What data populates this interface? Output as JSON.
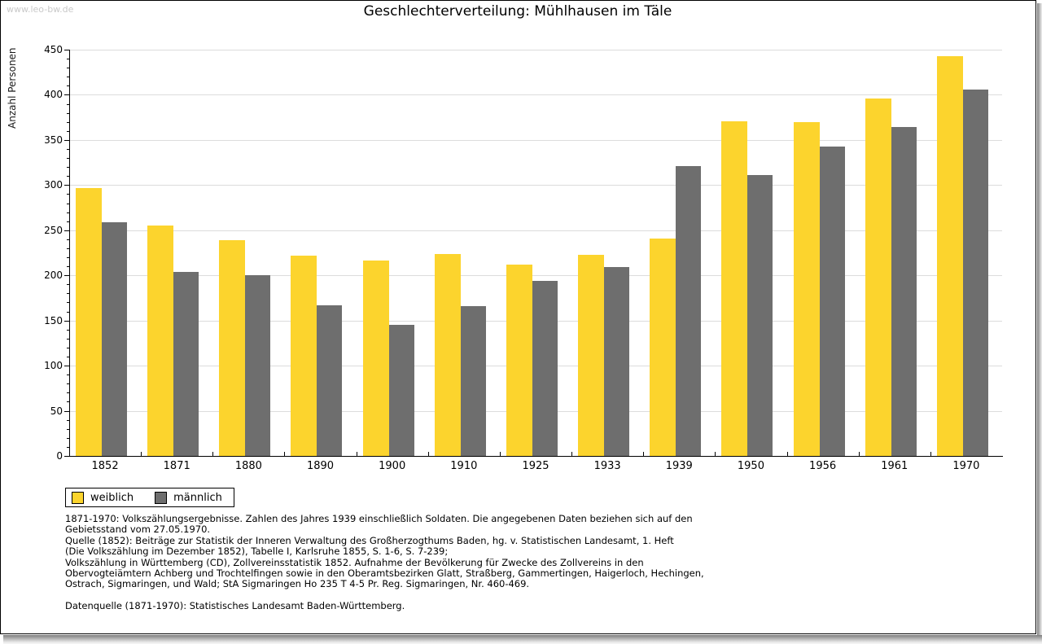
{
  "page": {
    "watermark": "www.leo-bw.de"
  },
  "chart_data": {
    "type": "bar",
    "title": "Geschlechterverteilung: Mühlhausen im Täle",
    "xlabel": "",
    "ylabel": "Anzahl Personen",
    "categories": [
      "1852",
      "1871",
      "1880",
      "1890",
      "1900",
      "1910",
      "1925",
      "1933",
      "1939",
      "1950",
      "1956",
      "1961",
      "1970"
    ],
    "series": [
      {
        "name": "weiblich",
        "color": "#FCD42D",
        "values": [
          297,
          255,
          239,
          222,
          216,
          224,
          212,
          223,
          241,
          371,
          370,
          396,
          443
        ]
      },
      {
        "name": "männlich",
        "color": "#6E6E6E",
        "values": [
          259,
          204,
          200,
          167,
          145,
          166,
          194,
          209,
          321,
          311,
          343,
          364,
          406
        ]
      }
    ],
    "ylim": [
      0,
      450
    ],
    "ytick_step": 50,
    "yminor_step": 10,
    "grid": true,
    "gridline_color": "#dcdcdc",
    "legend_position": "bottom-left"
  },
  "legend": {
    "items": [
      {
        "label": "weiblich",
        "color": "#FCD42D"
      },
      {
        "label": "männlich",
        "color": "#6E6E6E"
      }
    ]
  },
  "footer": {
    "lines": [
      "1871-1970: Volkszählungsergebnisse. Zahlen des Jahres 1939 einschließlich Soldaten. Die angegebenen Daten beziehen sich auf den",
      "Gebietsstand vom 27.05.1970.",
      "Quelle (1852): Beiträge zur Statistik der Inneren Verwaltung des Großherzogthums Baden, hg. v. Statistischen Landesamt, 1. Heft",
      "(Die Volkszählung im Dezember 1852), Tabelle I, Karlsruhe 1855, S. 1-6, S. 7-239;",
      "Volkszählung in Württemberg (CD), Zollvereinsstatistik 1852. Aufnahme der Bevölkerung für Zwecke des Zollvereins in den",
      "Obervogteiämtern Achberg und Trochtelfingen sowie in den Oberamtsbezirken Glatt, Straßberg, Gammertingen, Haigerloch, Hechingen,",
      "Ostrach, Sigmaringen, und Wald; StA Sigmaringen Ho 235 T 4-5 Pr. Reg. Sigmaringen, Nr. 460-469."
    ],
    "datasource": "Datenquelle (1871-1970): Statistisches Landesamt Baden-Württemberg."
  }
}
